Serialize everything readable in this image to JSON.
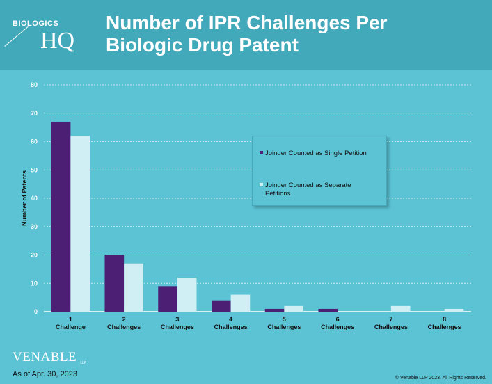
{
  "header": {
    "logo_top": "BIOLOGICS",
    "logo_main": "HQ",
    "title_line1": "Number of IPR Challenges Per",
    "title_line2": "Biologic Drug Patent"
  },
  "footer": {
    "brand": "VENABLE",
    "brand_suffix": "LLP",
    "date": "As of Apr. 30, 2023",
    "copyright": "© Venable LLP 2023. All Rights Reserved."
  },
  "chart_data": {
    "type": "bar",
    "title": "Number of IPR Challenges Per Biologic Drug Patent",
    "ylabel": "Number of Patents",
    "xlabel": "",
    "ylim": [
      0,
      80
    ],
    "yticks": [
      0,
      10,
      20,
      30,
      40,
      50,
      60,
      70,
      80
    ],
    "grid": true,
    "legend_position": "center-right",
    "categories": [
      [
        "1",
        "Challenge"
      ],
      [
        "2",
        "Challenges"
      ],
      [
        "3",
        "Challenges"
      ],
      [
        "4",
        "Challenges"
      ],
      [
        "5",
        "Challenges"
      ],
      [
        "6",
        "Challenges"
      ],
      [
        "7",
        "Challenges"
      ],
      [
        "8",
        "Challenges"
      ]
    ],
    "series": [
      {
        "name": "Joinder Counted as Single Petition",
        "color": "#4d1f74",
        "values": [
          67,
          20,
          9,
          4,
          1,
          1,
          0,
          0
        ]
      },
      {
        "name": "Joinder Counted as Separate Petitions",
        "color": "#cfeff4",
        "values": [
          62,
          17,
          12,
          6,
          2,
          0,
          2,
          1
        ]
      }
    ]
  }
}
